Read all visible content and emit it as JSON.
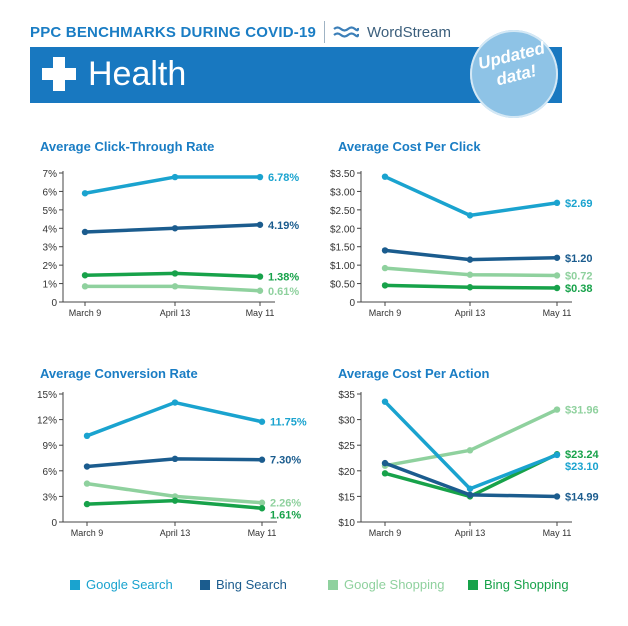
{
  "header": {
    "title": "PPC BENCHMARKS DURING COVID-19",
    "brand": "WordStream",
    "section": "Health",
    "badge": "Updated data!"
  },
  "legend": [
    {
      "name": "Google Search",
      "color": "#1aa3cf"
    },
    {
      "name": "Bing Search",
      "color": "#1b5c8e"
    },
    {
      "name": "Google Shopping",
      "color": "#8fd19e"
    },
    {
      "name": "Bing Shopping",
      "color": "#17a24a"
    }
  ],
  "chart_data": [
    {
      "type": "line",
      "title": "Average Click-Through Rate",
      "categories": [
        "March 9",
        "April 13",
        "May 11"
      ],
      "ylim": [
        0,
        7
      ],
      "yticks": [
        0,
        1,
        2,
        3,
        4,
        5,
        6,
        7
      ],
      "ytick_labels": [
        "0",
        "1%",
        "2%",
        "3%",
        "4%",
        "5%",
        "6%",
        "7%"
      ],
      "series": [
        {
          "name": "Google Search",
          "color": "#1aa3cf",
          "values": [
            5.9,
            6.78,
            6.78
          ],
          "end_label": "6.78%"
        },
        {
          "name": "Bing Search",
          "color": "#1b5c8e",
          "values": [
            3.8,
            4.0,
            4.19
          ],
          "end_label": "4.19%"
        },
        {
          "name": "Bing Shopping",
          "color": "#17a24a",
          "values": [
            1.45,
            1.55,
            1.38
          ],
          "end_label": "1.38%"
        },
        {
          "name": "Google Shopping",
          "color": "#8fd19e",
          "values": [
            0.85,
            0.85,
            0.61
          ],
          "end_label": "0.61%"
        }
      ]
    },
    {
      "type": "line",
      "title": "Average Cost Per Click",
      "categories": [
        "March 9",
        "April 13",
        "May 11"
      ],
      "ylim": [
        0,
        3.5
      ],
      "yticks": [
        0,
        0.5,
        1.0,
        1.5,
        2.0,
        2.5,
        3.0,
        3.5
      ],
      "ytick_labels": [
        "0",
        "$0.50",
        "$1.00",
        "$1.50",
        "$2.00",
        "$2.50",
        "$3.00",
        "$3.50"
      ],
      "series": [
        {
          "name": "Google Search",
          "color": "#1aa3cf",
          "values": [
            3.4,
            2.35,
            2.69
          ],
          "end_label": "$2.69"
        },
        {
          "name": "Bing Search",
          "color": "#1b5c8e",
          "values": [
            1.4,
            1.15,
            1.2
          ],
          "end_label": "$1.20"
        },
        {
          "name": "Google Shopping",
          "color": "#8fd19e",
          "values": [
            0.92,
            0.74,
            0.72
          ],
          "end_label": "$0.72"
        },
        {
          "name": "Bing Shopping",
          "color": "#17a24a",
          "values": [
            0.45,
            0.4,
            0.38
          ],
          "end_label": "$0.38"
        }
      ]
    },
    {
      "type": "line",
      "title": "Average Conversion Rate",
      "categories": [
        "March 9",
        "April 13",
        "May 11"
      ],
      "ylim": [
        0,
        15
      ],
      "yticks": [
        0,
        3,
        6,
        9,
        12,
        15
      ],
      "ytick_labels": [
        "0",
        "3%",
        "6%",
        "9%",
        "12%",
        "15%"
      ],
      "series": [
        {
          "name": "Google Search",
          "color": "#1aa3cf",
          "values": [
            10.1,
            14.0,
            11.75
          ],
          "end_label": "11.75%"
        },
        {
          "name": "Bing Search",
          "color": "#1b5c8e",
          "values": [
            6.5,
            7.4,
            7.3
          ],
          "end_label": "7.30%"
        },
        {
          "name": "Google Shopping",
          "color": "#8fd19e",
          "values": [
            4.5,
            3.0,
            2.26
          ],
          "end_label": "2.26%"
        },
        {
          "name": "Bing Shopping",
          "color": "#17a24a",
          "values": [
            2.1,
            2.5,
            1.61
          ],
          "end_label": "1.61%"
        }
      ]
    },
    {
      "type": "line",
      "title": "Average Cost Per Action",
      "categories": [
        "March 9",
        "April 13",
        "May 11"
      ],
      "ylim": [
        10,
        35
      ],
      "yticks": [
        10,
        15,
        20,
        25,
        30,
        35
      ],
      "ytick_labels": [
        "$10",
        "$15",
        "$20",
        "$25",
        "$30",
        "$35"
      ],
      "series": [
        {
          "name": "Google Shopping",
          "color": "#8fd19e",
          "values": [
            21.0,
            24.0,
            31.96
          ],
          "end_label": "$31.96"
        },
        {
          "name": "Bing Shopping",
          "color": "#17a24a",
          "values": [
            19.5,
            15.0,
            23.24
          ],
          "end_label": "$23.24"
        },
        {
          "name": "Google Search",
          "color": "#1aa3cf",
          "values": [
            33.5,
            16.5,
            23.1
          ],
          "end_label": "$23.10"
        },
        {
          "name": "Bing Search",
          "color": "#1b5c8e",
          "values": [
            21.5,
            15.3,
            14.99
          ],
          "end_label": "$14.99"
        }
      ]
    }
  ]
}
